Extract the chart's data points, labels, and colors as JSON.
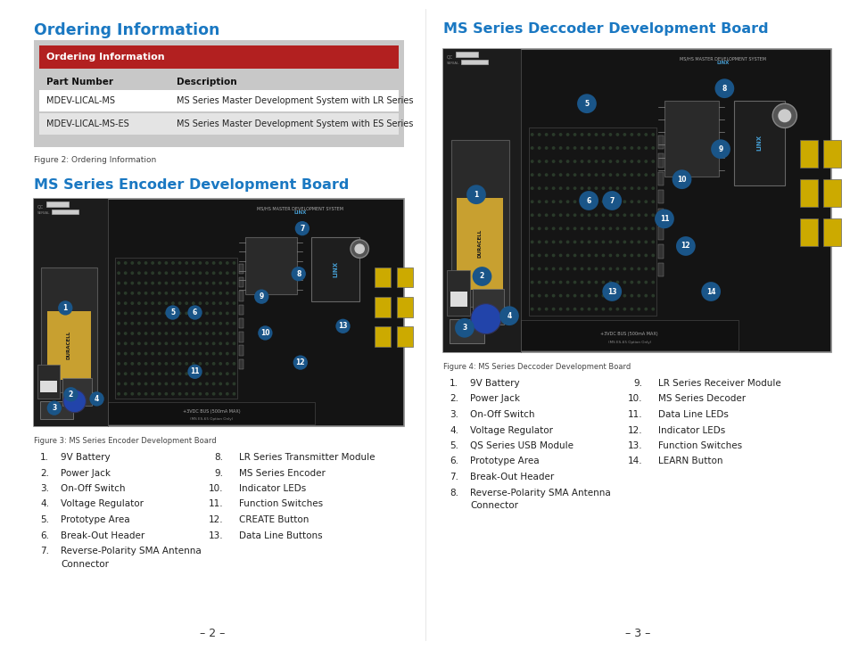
{
  "bg_color": "#ffffff",
  "title_color": "#1a78c2",
  "text_color": "#222222",
  "caption_color": "#444444",
  "page_num_color": "#333333",
  "section1_title": "Ordering Information",
  "table_header_bg": "#b22020",
  "table_header_text": "#ffffff",
  "table_outer_bg": "#c8c8c8",
  "table_col1_header": "Part Number",
  "table_col2_header": "Description",
  "table_rows": [
    [
      "MDEV-LICAL-MS",
      "MS Series Master Development System with LR Series"
    ],
    [
      "MDEV-LICAL-MS-ES",
      "MS Series Master Development System with ES Series"
    ]
  ],
  "fig2_caption": "Figure 2: Ordering Information",
  "section2_title": "MS Series Encoder Development Board",
  "fig3_caption": "Figure 3: MS Series Encoder Development Board",
  "encoder_list_left": [
    [
      "1.",
      "9V Battery"
    ],
    [
      "2.",
      "Power Jack"
    ],
    [
      "3.",
      "On-Off Switch"
    ],
    [
      "4.",
      "Voltage Regulator"
    ],
    [
      "5.",
      "Prototype Area"
    ],
    [
      "6.",
      "Break-Out Header"
    ],
    [
      "7.",
      "Reverse-Polarity SMA Antenna"
    ]
  ],
  "encoder_wrap7": "Connector",
  "encoder_list_right": [
    [
      "8.",
      "LR Series Transmitter Module"
    ],
    [
      "9.",
      "MS Series Encoder"
    ],
    [
      "10.",
      "Indicator LEDs"
    ],
    [
      "11.",
      "Function Switches"
    ],
    [
      "12.",
      "CREATE Button"
    ],
    [
      "13.",
      "Data Line Buttons"
    ]
  ],
  "section3_title": "MS Series Deccoder Development Board",
  "fig4_caption": "Figure 4: MS Series Deccoder Development Board",
  "decoder_list_left": [
    [
      "1.",
      "9V Battery"
    ],
    [
      "2.",
      "Power Jack"
    ],
    [
      "3.",
      "On-Off Switch"
    ],
    [
      "4.",
      "Voltage Regulator"
    ],
    [
      "5.",
      "QS Series USB Module"
    ],
    [
      "6.",
      "Prototype Area"
    ],
    [
      "7.",
      "Break-Out Header"
    ],
    [
      "8.",
      "Reverse-Polarity SMA Antenna"
    ]
  ],
  "decoder_wrap8": "Connector",
  "decoder_list_right": [
    [
      "9.",
      "LR Series Receiver Module"
    ],
    [
      "10.",
      "MS Series Decoder"
    ],
    [
      "11.",
      "Data Line LEDs"
    ],
    [
      "12.",
      "Indicator LEDs"
    ],
    [
      "13.",
      "Function Switches"
    ],
    [
      "14.",
      "LEARN Button"
    ]
  ],
  "page_left": "– 2 –",
  "page_right": "– 3 –",
  "pcb_bg": "#1a1a1a",
  "pcb_dark": "#111111",
  "pcb_green": "#2a5a2a",
  "pcb_dot_color": "#2a3a2a",
  "pcb_label_color": "#4a8a4a",
  "pcb_number_color": "#4499cc",
  "pcb_number_bg": "#1a5588"
}
